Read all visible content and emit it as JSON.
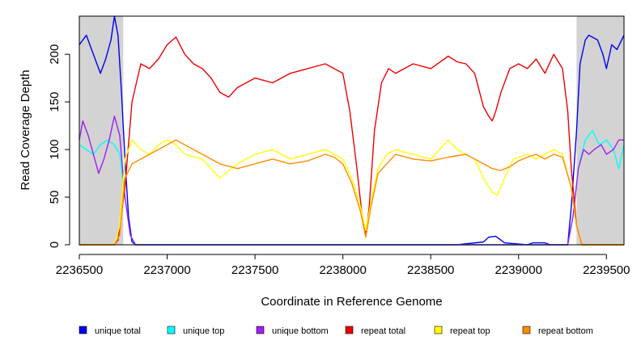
{
  "chart_data": {
    "type": "line",
    "title": "",
    "xlabel": "Coordinate in Reference Genome",
    "ylabel": "Read Coverage Depth",
    "xlim": [
      2236500,
      2239600
    ],
    "ylim": [
      0,
      240
    ],
    "x_ticks": [
      2236500,
      2237000,
      2237500,
      2238000,
      2238500,
      2239000,
      2239500
    ],
    "x_tick_labels": [
      "2236500",
      "2237000",
      "2237500",
      "2238000",
      "2238500",
      "2239000",
      "2239500"
    ],
    "y_ticks": [
      0,
      50,
      100,
      150,
      200
    ],
    "y_tick_labels": [
      "0",
      "50",
      "100",
      "150",
      "200"
    ],
    "grid": false,
    "legend_position": "bottom",
    "shaded_regions": [
      {
        "x0": 2236500,
        "x1": 2236750,
        "color": "#d3d3d3"
      },
      {
        "x0": 2239330,
        "x1": 2239600,
        "color": "#d3d3d3"
      }
    ],
    "series": [
      {
        "name": "unique total",
        "color": "#0000ee",
        "x": [
          2236500,
          2236540,
          2236580,
          2236620,
          2236650,
          2236680,
          2236700,
          2236720,
          2236740,
          2236760,
          2236780,
          2236800,
          2236820,
          2236900,
          2238250,
          2238350,
          2238600,
          2238650,
          2238800,
          2238830,
          2238870,
          2238920,
          2239050,
          2239080,
          2239150,
          2239180,
          2239280,
          2239300,
          2239330,
          2239350,
          2239380,
          2239400,
          2239450,
          2239480,
          2239500,
          2239530,
          2239560,
          2239600
        ],
        "y": [
          210,
          220,
          200,
          180,
          195,
          215,
          240,
          220,
          160,
          90,
          30,
          3,
          0,
          0,
          0,
          0,
          0,
          0,
          3,
          8,
          9,
          2,
          0,
          2,
          2,
          0,
          0,
          40,
          120,
          190,
          215,
          220,
          215,
          200,
          185,
          210,
          205,
          220
        ]
      },
      {
        "name": "unique top",
        "color": "#00ffff",
        "x": [
          2236500,
          2236540,
          2236580,
          2236620,
          2236660,
          2236700,
          2236730,
          2236760,
          2236790,
          2236820,
          2239280,
          2239310,
          2239340,
          2239380,
          2239420,
          2239460,
          2239500,
          2239540,
          2239570,
          2239600
        ],
        "y": [
          105,
          100,
          95,
          105,
          110,
          105,
          95,
          50,
          10,
          0,
          0,
          30,
          80,
          110,
          120,
          105,
          110,
          100,
          80,
          105
        ]
      },
      {
        "name": "unique bottom",
        "color": "#a020f0",
        "x": [
          2236500,
          2236520,
          2236550,
          2236580,
          2236610,
          2236640,
          2236670,
          2236700,
          2236730,
          2236760,
          2236790,
          2236820,
          2239280,
          2239310,
          2239340,
          2239370,
          2239400,
          2239430,
          2239470,
          2239500,
          2239540,
          2239570,
          2239600
        ],
        "y": [
          110,
          130,
          115,
          95,
          75,
          90,
          110,
          135,
          115,
          50,
          10,
          0,
          0,
          30,
          80,
          100,
          95,
          100,
          105,
          95,
          100,
          110,
          110
        ]
      },
      {
        "name": "repeat total",
        "color": "#ee0000",
        "x": [
          2236500,
          2236700,
          2236720,
          2236760,
          2236800,
          2236850,
          2236900,
          2236950,
          2237000,
          2237050,
          2237100,
          2237150,
          2237200,
          2237250,
          2237300,
          2237350,
          2237400,
          2237500,
          2237600,
          2237700,
          2237800,
          2237900,
          2237950,
          2238000,
          2238040,
          2238080,
          2238110,
          2238130,
          2238150,
          2238180,
          2238220,
          2238260,
          2238300,
          2238400,
          2238500,
          2238600,
          2238650,
          2238700,
          2238750,
          2238800,
          2238830,
          2238850,
          2238870,
          2238900,
          2238950,
          2239000,
          2239050,
          2239100,
          2239150,
          2239200,
          2239250,
          2239280,
          2239300,
          2239330,
          2239360,
          2239400,
          2239600
        ],
        "y": [
          0,
          0,
          5,
          60,
          150,
          190,
          185,
          195,
          210,
          218,
          200,
          190,
          185,
          175,
          160,
          155,
          165,
          175,
          170,
          180,
          185,
          190,
          185,
          180,
          140,
          80,
          30,
          10,
          40,
          120,
          170,
          185,
          180,
          190,
          185,
          198,
          192,
          190,
          180,
          145,
          135,
          130,
          140,
          160,
          185,
          190,
          185,
          195,
          180,
          200,
          185,
          140,
          80,
          20,
          0,
          0,
          0
        ]
      },
      {
        "name": "repeat top",
        "color": "#ffff00",
        "x": [
          2236500,
          2236700,
          2236730,
          2236760,
          2236800,
          2236850,
          2236900,
          2236950,
          2237000,
          2237050,
          2237100,
          2237200,
          2237300,
          2237400,
          2237500,
          2237600,
          2237700,
          2237800,
          2237900,
          2237950,
          2238000,
          2238050,
          2238100,
          2238130,
          2238160,
          2238200,
          2238250,
          2238300,
          2238400,
          2238500,
          2238550,
          2238600,
          2238650,
          2238700,
          2238750,
          2238800,
          2238850,
          2238880,
          2238920,
          2238970,
          2239050,
          2239100,
          2239150,
          2239200,
          2239250,
          2239300,
          2239330,
          2239360,
          2239400,
          2239600
        ],
        "y": [
          0,
          0,
          20,
          90,
          110,
          100,
          95,
          105,
          110,
          105,
          95,
          90,
          70,
          85,
          95,
          100,
          90,
          95,
          100,
          95,
          90,
          70,
          40,
          15,
          45,
          80,
          95,
          100,
          95,
          90,
          100,
          110,
          100,
          95,
          90,
          70,
          55,
          52,
          70,
          90,
          95,
          90,
          95,
          100,
          95,
          60,
          20,
          0,
          0,
          0
        ]
      },
      {
        "name": "repeat bottom",
        "color": "#ff8c00",
        "x": [
          2236500,
          2236700,
          2236730,
          2236760,
          2236800,
          2236850,
          2236900,
          2236950,
          2237000,
          2237050,
          2237100,
          2237150,
          2237200,
          2237300,
          2237400,
          2237500,
          2237600,
          2237700,
          2237800,
          2237900,
          2237950,
          2238000,
          2238050,
          2238100,
          2238130,
          2238160,
          2238200,
          2238250,
          2238300,
          2238400,
          2238500,
          2238600,
          2238700,
          2238750,
          2238800,
          2238850,
          2238900,
          2238950,
          2239000,
          2239050,
          2239100,
          2239150,
          2239200,
          2239250,
          2239300,
          2239330,
          2239360,
          2239400,
          2239600
        ],
        "y": [
          0,
          0,
          10,
          70,
          85,
          90,
          95,
          100,
          105,
          110,
          105,
          100,
          95,
          85,
          80,
          85,
          90,
          85,
          88,
          95,
          92,
          85,
          65,
          35,
          8,
          40,
          75,
          85,
          95,
          90,
          88,
          92,
          95,
          90,
          85,
          80,
          78,
          82,
          88,
          92,
          95,
          90,
          95,
          92,
          60,
          20,
          0,
          0,
          0
        ]
      }
    ]
  }
}
